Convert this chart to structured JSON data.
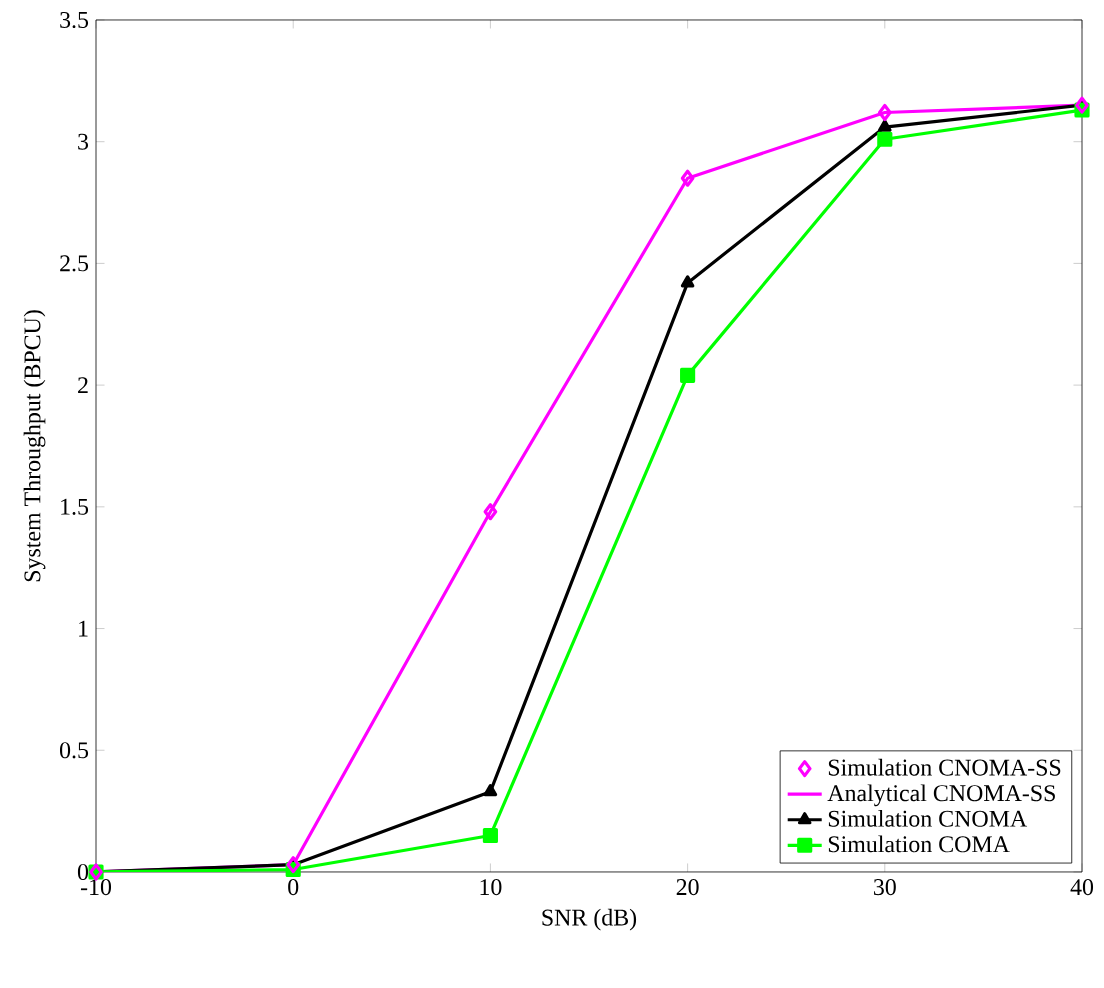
{
  "chart_data": {
    "type": "line",
    "xlabel": "SNR (dB)",
    "ylabel": "System Throughput (BPCU)",
    "x": [
      -10,
      0,
      10,
      20,
      30,
      40
    ],
    "series": [
      {
        "name": "Simulation CNOMA-SS",
        "type": "scatter",
        "marker": "diamond",
        "color": "#ff00ff",
        "values": [
          0,
          0.03,
          1.48,
          2.85,
          3.12,
          3.15
        ]
      },
      {
        "name": "Analytical CNOMA-SS",
        "color": "#ff00ff",
        "marker": "none",
        "values": [
          0,
          0.03,
          1.48,
          2.85,
          3.12,
          3.15
        ]
      },
      {
        "name": "Simulation CNOMA",
        "color": "#000000",
        "marker": "triangle",
        "values": [
          0,
          0.03,
          0.33,
          2.42,
          3.06,
          3.15
        ]
      },
      {
        "name": "Simulation COMA",
        "color": "#00ff00",
        "marker": "square",
        "values": [
          0,
          0.01,
          0.15,
          2.04,
          3.01,
          3.13
        ]
      }
    ],
    "xlim": [
      -10,
      40
    ],
    "ylim": [
      0,
      3.5
    ],
    "xticks": [
      -10,
      0,
      10,
      20,
      30,
      40
    ],
    "yticks": [
      0,
      0.5,
      1,
      1.5,
      2,
      2.5,
      3,
      3.5
    ],
    "grid": false,
    "legend": "bottom right",
    "line_style": "solid"
  }
}
